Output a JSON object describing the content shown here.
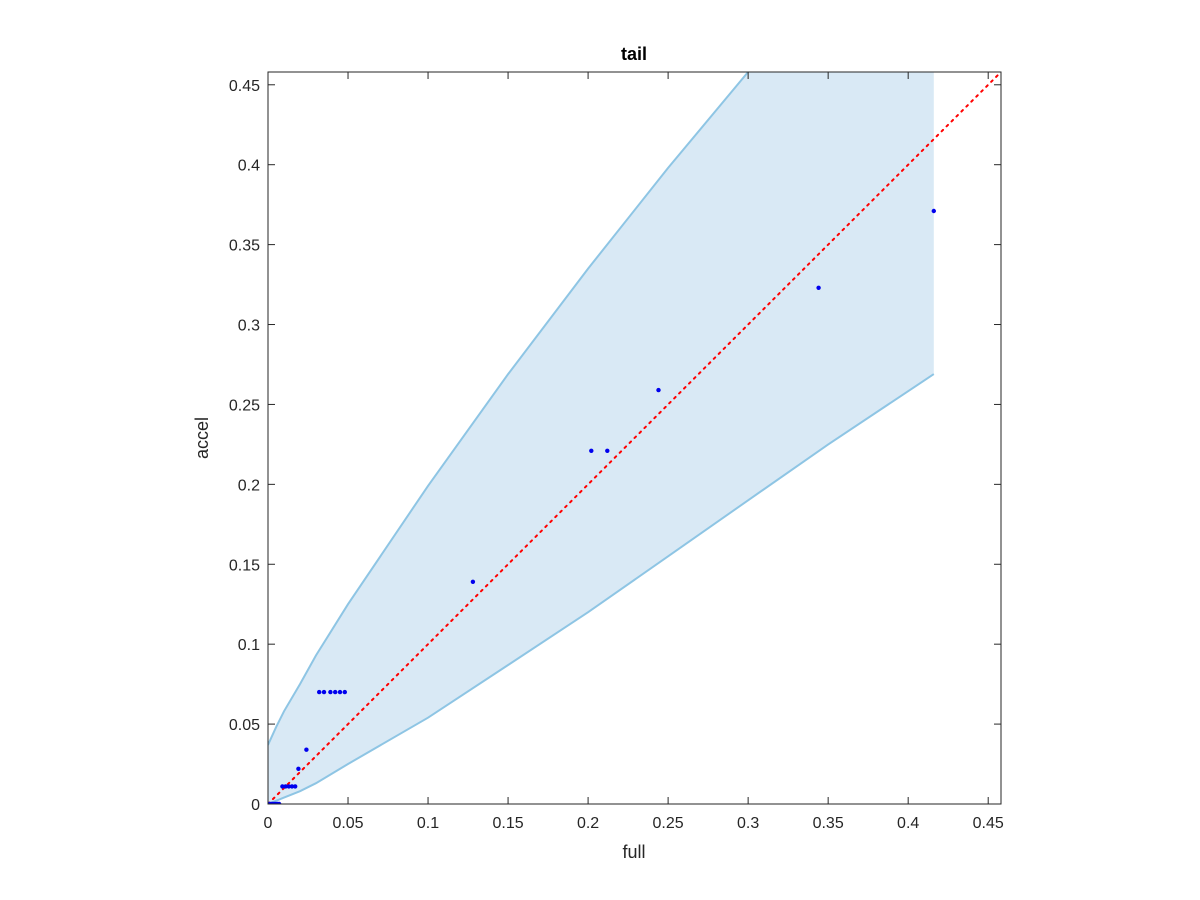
{
  "chart_data": {
    "type": "scatter",
    "title": "tail",
    "xlabel": "full",
    "ylabel": "accel",
    "xlim": [
      0,
      0.458
    ],
    "ylim": [
      0,
      0.458
    ],
    "x_ticks": [
      0,
      0.05,
      0.1,
      0.15,
      0.2,
      0.25,
      0.3,
      0.35,
      0.4,
      0.45
    ],
    "x_tick_labels": [
      "0",
      "0.05",
      "0.1",
      "0.15",
      "0.2",
      "0.25",
      "0.3",
      "0.35",
      "0.4",
      "0.45"
    ],
    "y_ticks": [
      0,
      0.05,
      0.1,
      0.15,
      0.2,
      0.25,
      0.3,
      0.35,
      0.4,
      0.45
    ],
    "y_tick_labels": [
      "0",
      "0.05",
      "0.1",
      "0.15",
      "0.2",
      "0.25",
      "0.3",
      "0.35",
      "0.4",
      "0.45"
    ],
    "grid": false,
    "points": [
      {
        "x": 0.0,
        "y": 0.0
      },
      {
        "x": 0.001,
        "y": 0.0
      },
      {
        "x": 0.002,
        "y": 0.0
      },
      {
        "x": 0.003,
        "y": 0.0
      },
      {
        "x": 0.004,
        "y": 0.0
      },
      {
        "x": 0.005,
        "y": 0.0
      },
      {
        "x": 0.006,
        "y": 0.0
      },
      {
        "x": 0.007,
        "y": 0.0
      },
      {
        "x": 0.009,
        "y": 0.011
      },
      {
        "x": 0.011,
        "y": 0.011
      },
      {
        "x": 0.013,
        "y": 0.011
      },
      {
        "x": 0.015,
        "y": 0.011
      },
      {
        "x": 0.017,
        "y": 0.011
      },
      {
        "x": 0.019,
        "y": 0.022
      },
      {
        "x": 0.024,
        "y": 0.034
      },
      {
        "x": 0.032,
        "y": 0.07
      },
      {
        "x": 0.035,
        "y": 0.07
      },
      {
        "x": 0.039,
        "y": 0.07
      },
      {
        "x": 0.042,
        "y": 0.07
      },
      {
        "x": 0.045,
        "y": 0.07
      },
      {
        "x": 0.048,
        "y": 0.07
      },
      {
        "x": 0.128,
        "y": 0.139
      },
      {
        "x": 0.202,
        "y": 0.221
      },
      {
        "x": 0.212,
        "y": 0.221
      },
      {
        "x": 0.244,
        "y": 0.259
      },
      {
        "x": 0.344,
        "y": 0.323
      },
      {
        "x": 0.416,
        "y": 0.371
      }
    ],
    "band": {
      "upper": [
        [
          0,
          0.037
        ],
        [
          0.005,
          0.048
        ],
        [
          0.01,
          0.058
        ],
        [
          0.02,
          0.075
        ],
        [
          0.03,
          0.093
        ],
        [
          0.05,
          0.125
        ],
        [
          0.1,
          0.199
        ],
        [
          0.15,
          0.269
        ],
        [
          0.2,
          0.335
        ],
        [
          0.25,
          0.398
        ],
        [
          0.3,
          0.458
        ]
      ],
      "lower": [
        [
          0,
          0.0
        ],
        [
          0.005,
          0.002
        ],
        [
          0.01,
          0.004
        ],
        [
          0.02,
          0.008
        ],
        [
          0.03,
          0.013
        ],
        [
          0.05,
          0.025
        ],
        [
          0.1,
          0.054
        ],
        [
          0.15,
          0.087
        ],
        [
          0.2,
          0.12
        ],
        [
          0.25,
          0.155
        ],
        [
          0.3,
          0.19
        ],
        [
          0.35,
          0.225
        ],
        [
          0.416,
          0.269
        ]
      ],
      "x_end": 0.416,
      "fill_color": "#d9e9f5",
      "edge_color": "#8ec5e4"
    },
    "reference_line": {
      "from": [
        0,
        0
      ],
      "to": [
        0.458,
        0.458
      ],
      "style": "dotted",
      "color": "#ff0000"
    },
    "point_color": "#0000ee"
  }
}
